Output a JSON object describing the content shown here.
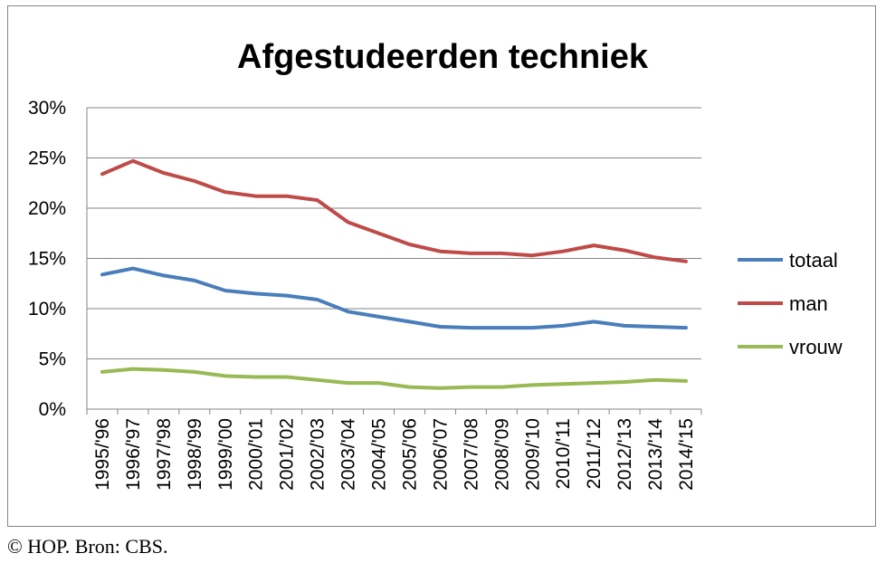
{
  "credit": "© HOP. Bron: CBS.",
  "chart_data": {
    "type": "line",
    "title": "Afgestudeerden techniek",
    "xlabel": "",
    "ylabel": "",
    "categories": [
      "1995/'96",
      "1996/'97",
      "1997/'98",
      "1998/'99",
      "1999/'00",
      "2000/'01",
      "2001/'02",
      "2002/'03",
      "2003/'04",
      "2004/'05",
      "2005/'06",
      "2006/'07",
      "2007/'08",
      "2008/'09",
      "2009/'10",
      "2010/'11",
      "2011/'12",
      "2012/'13",
      "2013/'14",
      "2014/'15"
    ],
    "ylim": [
      0,
      30
    ],
    "yticks": [
      0,
      5,
      10,
      15,
      20,
      25,
      30
    ],
    "ytick_labels": [
      "0%",
      "5%",
      "10%",
      "15%",
      "20%",
      "25%",
      "30%"
    ],
    "grid": true,
    "legend_position": "right",
    "series": [
      {
        "name": "totaal",
        "color": "#4a7ebb",
        "values": [
          13.4,
          14.0,
          13.3,
          12.8,
          11.8,
          11.5,
          11.3,
          10.9,
          9.7,
          9.2,
          8.7,
          8.2,
          8.1,
          8.1,
          8.1,
          8.3,
          8.7,
          8.3,
          8.2,
          8.1
        ]
      },
      {
        "name": "man",
        "color": "#be4b48",
        "values": [
          23.4,
          24.7,
          23.5,
          22.7,
          21.6,
          21.2,
          21.2,
          20.8,
          18.6,
          17.5,
          16.4,
          15.7,
          15.5,
          15.5,
          15.3,
          15.7,
          16.3,
          15.8,
          15.1,
          14.7
        ]
      },
      {
        "name": "vrouw",
        "color": "#98b954",
        "values": [
          3.7,
          4.0,
          3.9,
          3.7,
          3.3,
          3.2,
          3.2,
          2.9,
          2.6,
          2.6,
          2.2,
          2.1,
          2.2,
          2.2,
          2.4,
          2.5,
          2.6,
          2.7,
          2.9,
          2.8
        ]
      }
    ]
  }
}
